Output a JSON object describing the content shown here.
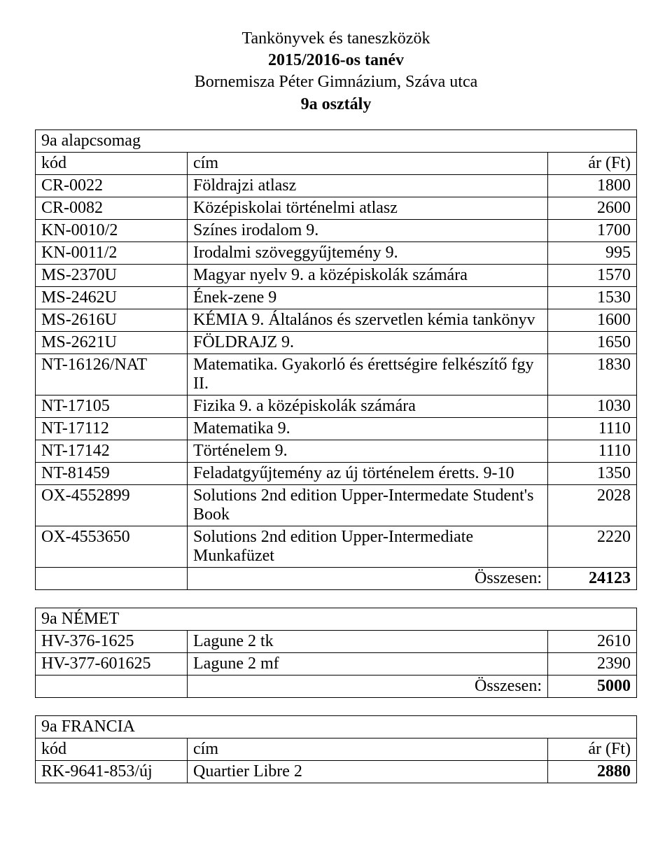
{
  "header": {
    "line1": "Tankönyvek és taneszközök",
    "line2": "2015/2016-os tanév",
    "line3": "Bornemisza Péter Gimnázium, Száva utca",
    "line4": "9a osztály"
  },
  "table1": {
    "group": "9a alapcsomag",
    "head_code": "kód",
    "head_title": "cím",
    "head_price": "ár (Ft)",
    "rows": [
      {
        "code": "CR-0022",
        "title": "Földrajzi atlasz",
        "price": "1800"
      },
      {
        "code": "CR-0082",
        "title": "Középiskolai történelmi atlasz",
        "price": "2600"
      },
      {
        "code": "KN-0010/2",
        "title": "Színes irodalom 9.",
        "price": "1700"
      },
      {
        "code": "KN-0011/2",
        "title": "Irodalmi szöveggyűjtemény 9.",
        "price": "995"
      },
      {
        "code": "MS-2370U",
        "title": "Magyar nyelv 9. a középiskolák számára",
        "price": "1570"
      },
      {
        "code": "MS-2462U",
        "title": "Ének-zene 9",
        "price": "1530"
      },
      {
        "code": "MS-2616U",
        "title": "KÉMIA 9. Általános és szervetlen kémia tankönyv",
        "price": "1600"
      },
      {
        "code": "MS-2621U",
        "title": "FÖLDRAJZ 9.",
        "price": "1650"
      },
      {
        "code": "NT-16126/NAT",
        "title": "Matematika. Gyakorló és érettségire felkészítő fgy II.",
        "price": "1830"
      },
      {
        "code": "NT-17105",
        "title": "Fizika 9. a középiskolák számára",
        "price": "1030"
      },
      {
        "code": "NT-17112",
        "title": "Matematika 9.",
        "price": "1110"
      },
      {
        "code": "NT-17142",
        "title": "Történelem 9.",
        "price": "1110"
      },
      {
        "code": "NT-81459",
        "title": "Feladatgyűjtemény az új történelem éretts. 9-10",
        "price": "1350"
      },
      {
        "code": "OX-4552899",
        "title": "Solutions 2nd edition Upper-Intermedate Student's Book",
        "price": "2028"
      },
      {
        "code": "OX-4553650",
        "title": "Solutions 2nd edition Upper-Intermediate Munkafüzet",
        "price": "2220"
      }
    ],
    "total_label": "Összesen:",
    "total_value": "24123"
  },
  "table2": {
    "group": "9a NÉMET",
    "rows": [
      {
        "code": "HV-376-1625",
        "title": "Lagune 2 tk",
        "price": "2610"
      },
      {
        "code": "HV-377-601625",
        "title": "Lagune 2 mf",
        "price": "2390"
      }
    ],
    "total_label": "Összesen:",
    "total_value": "5000"
  },
  "table3": {
    "group": "9a FRANCIA",
    "head_code": "kód",
    "head_title": "cím",
    "head_price": "ár (Ft)",
    "rows": [
      {
        "code": "RK-9641-853/új",
        "title": "Quartier Libre 2",
        "price": "2880"
      }
    ]
  }
}
